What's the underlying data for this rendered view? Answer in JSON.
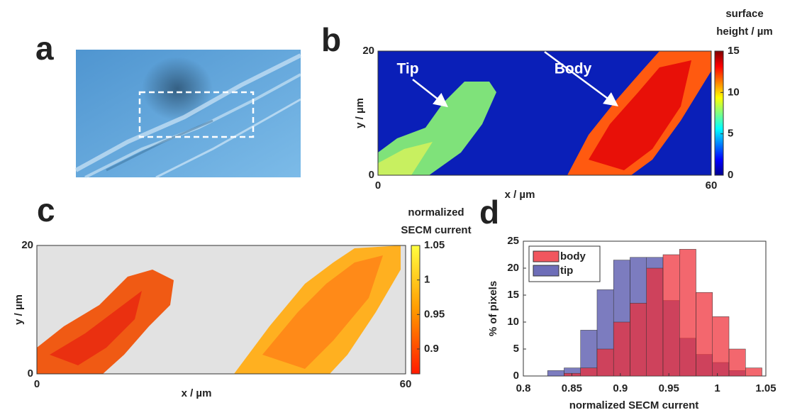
{
  "chart_data": [
    {
      "type": "image",
      "panel_label": "a"
    },
    {
      "type": "heatmap",
      "panel_label": "b",
      "xlabel": "x / µm",
      "ylabel": "y / µm",
      "xlim": [
        0,
        60
      ],
      "ylim": [
        0,
        20
      ],
      "xticks": [
        0,
        60
      ],
      "yticks": [
        0,
        20
      ],
      "colorbar_title": [
        "surface",
        "height / µm"
      ],
      "clim": [
        0,
        15
      ],
      "cticks": [
        0,
        5,
        10,
        15
      ],
      "colormap": "jet",
      "annotations": [
        "Tip",
        "Body"
      ]
    },
    {
      "type": "heatmap",
      "panel_label": "c",
      "xlabel": "x / µm",
      "ylabel": "y / µm",
      "xlim": [
        0,
        60
      ],
      "ylim": [
        0,
        20
      ],
      "xticks": [
        0,
        60
      ],
      "yticks": [
        0,
        20
      ],
      "colorbar_title": [
        "normalized",
        "SECM current"
      ],
      "clim": [
        0.864,
        1.05
      ],
      "cticks": [
        0.9,
        0.95,
        1,
        1.05
      ],
      "colormap": "hot"
    },
    {
      "type": "histogram",
      "panel_label": "d",
      "xlabel": "normalized SECM current",
      "ylabel": "% of pixels",
      "xlim": [
        0.8,
        1.05
      ],
      "ylim": [
        0,
        25
      ],
      "xticks": [
        0.8,
        0.85,
        0.9,
        0.95,
        1,
        1.05
      ],
      "yticks": [
        0,
        5,
        10,
        15,
        20,
        25
      ],
      "bins": [
        0.825,
        0.842,
        0.859,
        0.876,
        0.893,
        0.91,
        0.927,
        0.944,
        0.961,
        0.978,
        0.995,
        1.012,
        1.029,
        1.046
      ],
      "legend": "upper left",
      "series": [
        {
          "name": "body",
          "color": "#ee2c36",
          "values": [
            0,
            0.5,
            1.5,
            5,
            10,
            13.5,
            20,
            22.5,
            23.5,
            15.5,
            11,
            5,
            1.5
          ]
        },
        {
          "name": "tip",
          "color": "#4a4aa6",
          "values": [
            1,
            1.5,
            8.5,
            16,
            21.5,
            22,
            22,
            14,
            7,
            4,
            2.5,
            1,
            0
          ]
        }
      ]
    }
  ]
}
